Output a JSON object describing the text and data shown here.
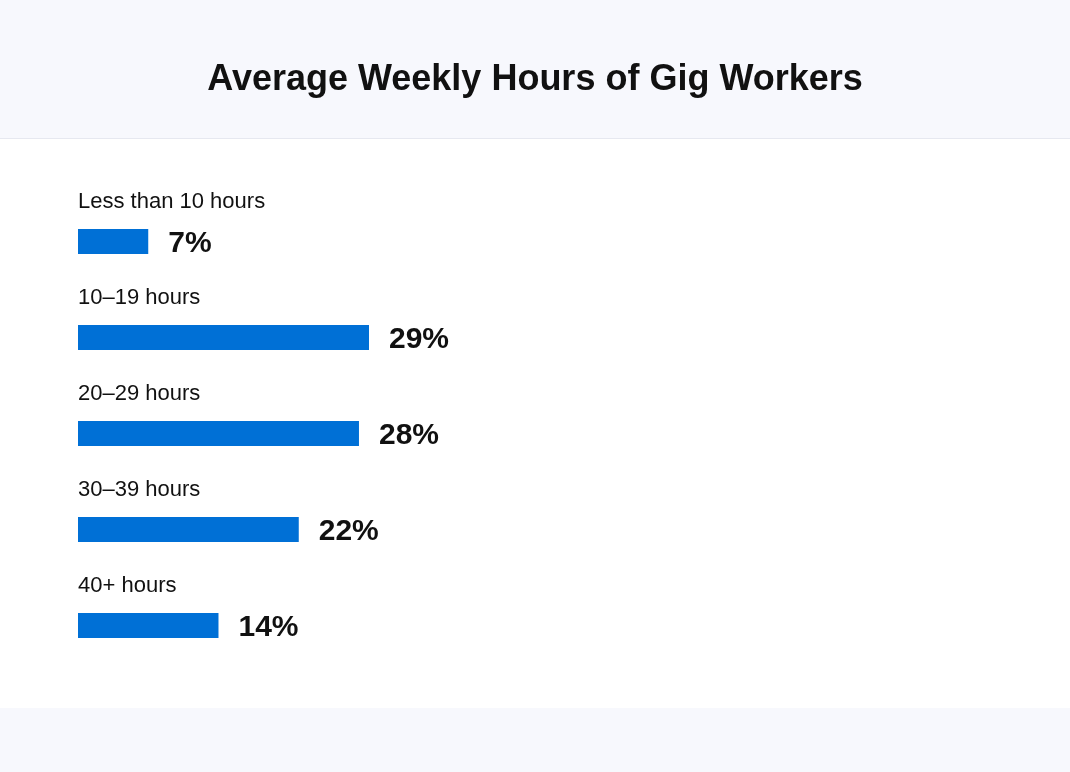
{
  "chart_data": {
    "type": "bar",
    "orientation": "horizontal",
    "title": "Average Weekly Hours of Gig Workers",
    "categories": [
      "Less than 10 hours",
      "10–19 hours",
      "20–29 hours",
      "30–39 hours",
      "40+ hours"
    ],
    "values": [
      7,
      29,
      28,
      22,
      14
    ],
    "value_labels": [
      "7%",
      "29%",
      "28%",
      "22%",
      "14%"
    ],
    "color": "#0070d6"
  }
}
